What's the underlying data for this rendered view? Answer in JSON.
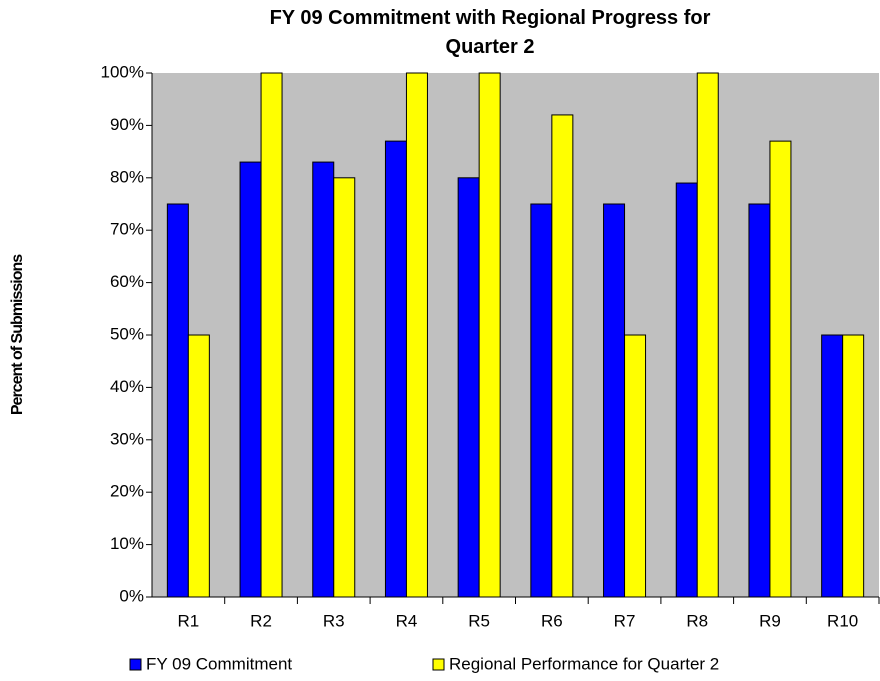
{
  "chart_data": {
    "type": "bar",
    "title": "FY 09 Commitment with Regional Progress for Quarter 2",
    "y_label": "Percent of Submissions",
    "categories": [
      "R1",
      "R2",
      "R3",
      "R4",
      "R5",
      "R6",
      "R7",
      "R8",
      "R9",
      "R10"
    ],
    "series": [
      {
        "name": "FY 09 Commitment",
        "color": "#0000ff",
        "values": [
          75,
          83,
          83,
          87,
          80,
          75,
          75,
          79,
          75,
          50
        ]
      },
      {
        "name": "Regional Performance for Quarter 2",
        "color": "#ffff00",
        "values": [
          50,
          100,
          80,
          100,
          100,
          92,
          50,
          100,
          87,
          50
        ]
      }
    ],
    "ylim": [
      0,
      100
    ],
    "yticks": [
      {
        "value": 0,
        "label": "0%"
      },
      {
        "value": 10,
        "label": "10%"
      },
      {
        "value": 20,
        "label": "20%"
      },
      {
        "value": 30,
        "label": "30%"
      },
      {
        "value": 40,
        "label": "40%"
      },
      {
        "value": 50,
        "label": "50%"
      },
      {
        "value": 60,
        "label": "60%"
      },
      {
        "value": 70,
        "label": "70%"
      },
      {
        "value": 80,
        "label": "80%"
      },
      {
        "value": 90,
        "label": "90%"
      },
      {
        "value": 100,
        "label": "100%"
      }
    ],
    "plot_background": "#c0c0c0",
    "legend": "bottom"
  }
}
